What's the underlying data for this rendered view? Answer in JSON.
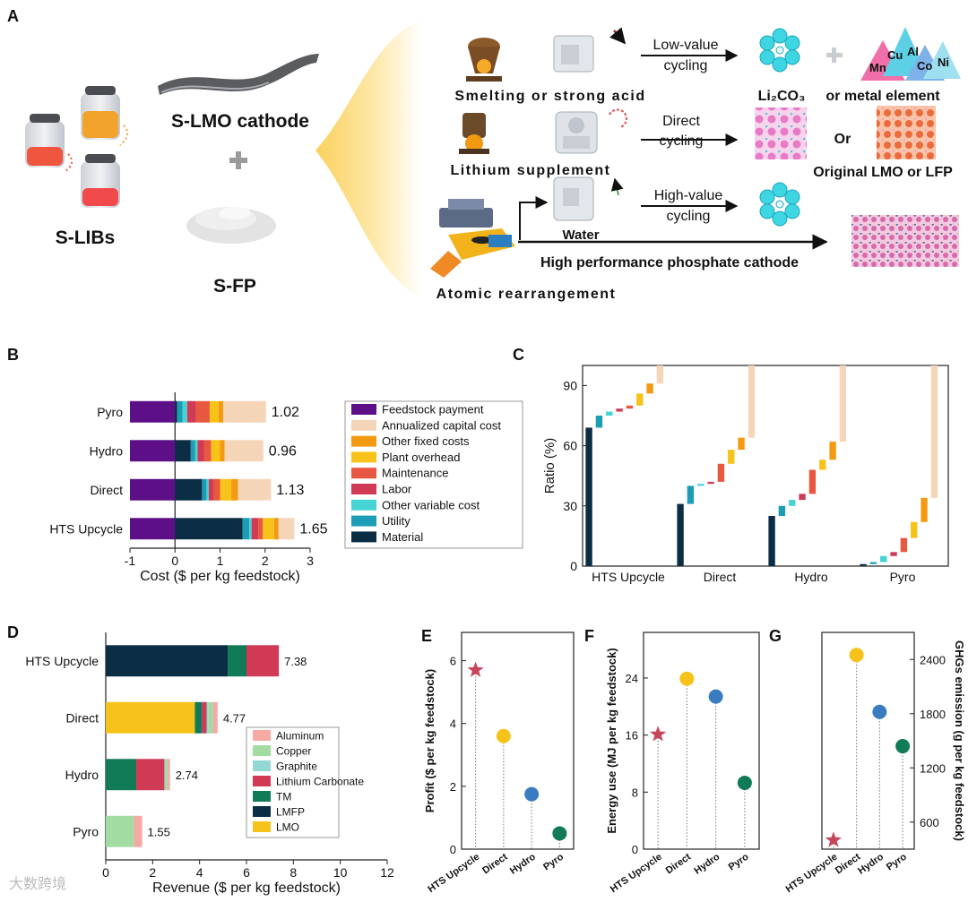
{
  "diagram": {
    "panel": "A",
    "batteries": "S-LIBs",
    "cathode": "S-LMO cathode",
    "powder": "S-FP",
    "low_route": {
      "process": "Smelting or strong acid",
      "arrow": [
        "Low-value",
        "cycling"
      ],
      "product": "Li₂CO₃",
      "connector": "or metal element",
      "elements": [
        "Cu",
        "Al",
        "Mn",
        "Co",
        "Ni"
      ]
    },
    "direct_route": {
      "process": "Lithium supplement",
      "arrow": [
        "Direct",
        "cycling"
      ],
      "connector": "Or",
      "product": "Original LMO or LFP"
    },
    "high_route": {
      "process": "Atomic rearrangement",
      "medium": "Water",
      "arrow": [
        "High-value",
        "cycling"
      ],
      "product": "High performance phosphate cathode"
    }
  },
  "watermark": "大数跨境",
  "chart_data": [
    {
      "panel": "B",
      "type": "bar",
      "orientation": "horizontal",
      "stacked": true,
      "categories": [
        "Pyro",
        "Hydro",
        "Direct",
        "HTS  Upcycle"
      ],
      "series": [
        {
          "name": "Feedstock payment",
          "color": "#5c0f87",
          "values": [
            -1,
            -1,
            -1,
            -1
          ]
        },
        {
          "name": "Annualized  capital cost",
          "color": "#f5d5b8",
          "values": [
            0.95,
            0.86,
            0.73,
            0.35
          ]
        },
        {
          "name": "Other fixed costs",
          "color": "#f39a12",
          "values": [
            0.1,
            0.1,
            0.15,
            0.1
          ]
        },
        {
          "name": "Plant overhead",
          "color": "#f7c219",
          "values": [
            0.2,
            0.2,
            0.25,
            0.25
          ]
        },
        {
          "name": "Maintenance",
          "color": "#e8573f",
          "values": [
            0.3,
            0.15,
            0.15,
            0.1
          ]
        },
        {
          "name": "Labor",
          "color": "#d03a55",
          "values": [
            0.2,
            0.15,
            0.1,
            0.15
          ]
        },
        {
          "name": "Other variable cost",
          "color": "#46d3d3",
          "values": [
            0.1,
            0.05,
            0.05,
            0.05
          ]
        },
        {
          "name": "Utility",
          "color": "#1c9db5",
          "values": [
            0.12,
            0.1,
            0.1,
            0.15
          ]
        },
        {
          "name": "Material",
          "color": "#0c2e44",
          "values": [
            0.05,
            0.35,
            0.6,
            1.5
          ]
        }
      ],
      "totals": [
        1.02,
        0.96,
        1.13,
        1.65
      ],
      "xlim": [
        -1,
        3
      ],
      "xticks": [
        -1,
        0,
        1,
        2,
        3
      ],
      "xlabel": "Cost ($ per kg feedstock)"
    },
    {
      "panel": "C",
      "type": "waterfall",
      "categories": [
        "HTS Upcycle",
        "Direct",
        "Hydro",
        "Pyro"
      ],
      "series": [
        {
          "color": "#f5d5b8",
          "values": [
            9,
            36,
            38,
            66
          ]
        },
        {
          "color": "#f39a12",
          "values": [
            5,
            6,
            9,
            12
          ]
        },
        {
          "color": "#f7c219",
          "values": [
            6,
            7,
            5,
            8
          ]
        },
        {
          "color": "#e8573f",
          "values": [
            1.5,
            9,
            12,
            7
          ]
        },
        {
          "color": "#d03a55",
          "values": [
            1.5,
            1,
            3,
            2
          ]
        },
        {
          "color": "#46d3d3",
          "values": [
            2,
            1,
            3,
            3
          ]
        },
        {
          "color": "#1c9db5",
          "values": [
            6,
            9,
            5,
            1
          ]
        },
        {
          "color": "#0c2e44",
          "values": [
            69,
            31,
            25,
            1
          ]
        }
      ],
      "ylim": [
        0,
        100
      ],
      "yticks": [
        0,
        30,
        60,
        90
      ],
      "ylabel": "Ratio (%)"
    },
    {
      "panel": "D",
      "type": "bar",
      "orientation": "horizontal",
      "stacked": true,
      "categories": [
        "HTS Upcycle",
        "Direct",
        "Hydro",
        "Pyro"
      ],
      "series": [
        {
          "name": "Aluminum",
          "color": "#f6aaa3",
          "values": [
            0,
            0.2,
            0.1,
            0.35
          ]
        },
        {
          "name": "Copper",
          "color": "#a3dca3",
          "values": [
            0,
            0.2,
            0.1,
            1.2
          ]
        },
        {
          "name": "Graphite",
          "color": "#93d8d4",
          "values": [
            0,
            0.07,
            0.04,
            0
          ]
        },
        {
          "name": "Lithium Carbonate",
          "color": "#d03a55",
          "values": [
            1.38,
            0.2,
            1.2,
            0
          ]
        },
        {
          "name": "TM",
          "color": "#117a57",
          "values": [
            0.8,
            0.3,
            1.3,
            0
          ]
        },
        {
          "name": "LMFP",
          "color": "#0c2e44",
          "values": [
            5.2,
            0,
            0,
            0
          ]
        },
        {
          "name": "LMO",
          "color": "#f7c219",
          "values": [
            0,
            3.8,
            0,
            0
          ]
        }
      ],
      "totals": [
        7.38,
        4.77,
        2.74,
        1.55
      ],
      "xlim": [
        0,
        12
      ],
      "xticks": [
        0,
        2,
        4,
        6,
        8,
        10,
        12
      ],
      "xlabel": "Revenue ($ per kg feedstock)"
    },
    {
      "panel": "E",
      "type": "lollipop",
      "categories": [
        "HTS Upcycle",
        "Direct",
        "Hydro",
        "Pyro"
      ],
      "values": [
        5.7,
        3.6,
        1.75,
        0.5
      ],
      "colors": [
        "#c8465b",
        "#f7c219",
        "#3a7cc0",
        "#117a57"
      ],
      "markers": [
        "star",
        "circle",
        "circle",
        "circle"
      ],
      "ylim": [
        0,
        6.9
      ],
      "yticks": [
        0,
        2,
        4,
        6
      ],
      "ylabel": "Profit ($ per kg feedstock)"
    },
    {
      "panel": "F",
      "type": "lollipop",
      "categories": [
        "HTS Upcycle",
        "Direct",
        "Hydro",
        "Pyro"
      ],
      "values": [
        16.1,
        23.9,
        21.4,
        9.3
      ],
      "colors": [
        "#c8465b",
        "#f7c219",
        "#3a7cc0",
        "#117a57"
      ],
      "markers": [
        "star",
        "circle",
        "circle",
        "circle"
      ],
      "ylim": [
        0,
        30.4
      ],
      "yticks": [
        0,
        8,
        16,
        24
      ],
      "ylabel": "Energy use (MJ per kg feedstock)"
    },
    {
      "panel": "G",
      "type": "lollipop",
      "axis": "y2",
      "categories": [
        "HTS Upcycle",
        "Direct",
        "Hydro",
        "Pyro"
      ],
      "values": [
        400,
        2450,
        1820,
        1440
      ],
      "colors": [
        "#c8465b",
        "#f7c219",
        "#3a7cc0",
        "#117a57"
      ],
      "markers": [
        "star",
        "circle",
        "circle",
        "circle"
      ],
      "y2lim": [
        300,
        2700
      ],
      "y2ticks": [
        600,
        1200,
        1800,
        2400
      ],
      "y2label": "GHGs emission (g per kg feedstock)"
    }
  ]
}
